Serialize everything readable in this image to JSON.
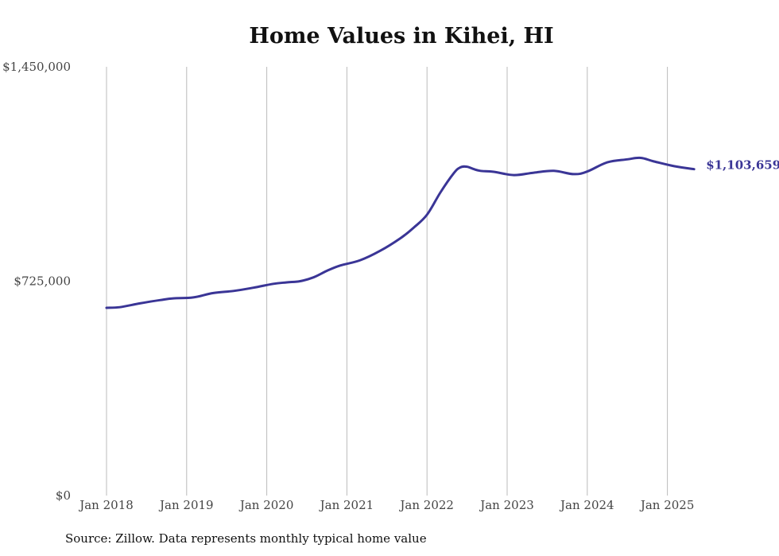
{
  "chart_data": {
    "type": "line",
    "title": "Home Values in Kihei, HI",
    "xlabel": "",
    "ylabel": "",
    "x_ticks": [
      "Jan 2018",
      "Jan 2019",
      "Jan 2020",
      "Jan 2021",
      "Jan 2022",
      "Jan 2023",
      "Jan 2024",
      "Jan 2025"
    ],
    "y_ticks": [
      "$0",
      "$725,000",
      "$1,450,000"
    ],
    "ylim": [
      0,
      1450000
    ],
    "xlim": [
      "2018-01",
      "2025-05"
    ],
    "grid": "vertical",
    "legend": "none",
    "end_label": "$1,103,659",
    "line_color": "#3a3596",
    "grid_color": "#bbbbbb",
    "series": [
      {
        "x": [
          "2018-01",
          "2018-03",
          "2018-06",
          "2018-09",
          "2018-11",
          "2019-02",
          "2019-05",
          "2019-08",
          "2019-11",
          "2020-02",
          "2020-04",
          "2020-06",
          "2020-08",
          "2020-10",
          "2020-12",
          "2021-03",
          "2021-06",
          "2021-09",
          "2021-11",
          "2022-01",
          "2022-03",
          "2022-05",
          "2022-06",
          "2022-07",
          "2022-08",
          "2022-09",
          "2022-11",
          "2023-02",
          "2023-05",
          "2023-08",
          "2023-11",
          "2024-01",
          "2024-04",
          "2024-07",
          "2024-09",
          "2024-11",
          "2025-02",
          "2025-05"
        ],
        "values": [
          635000,
          637000,
          650000,
          661000,
          667000,
          670000,
          685000,
          692000,
          703000,
          716000,
          721000,
          725000,
          738000,
          760000,
          778000,
          796000,
          828000,
          870000,
          906000,
          950000,
          1025000,
          1090000,
          1110000,
          1112000,
          1104000,
          1098000,
          1095000,
          1084000,
          1092000,
          1098000,
          1087000,
          1096000,
          1127000,
          1137000,
          1142000,
          1130000,
          1114000,
          1103659
        ]
      }
    ]
  },
  "source": "Source: Zillow. Data represents monthly typical home value"
}
